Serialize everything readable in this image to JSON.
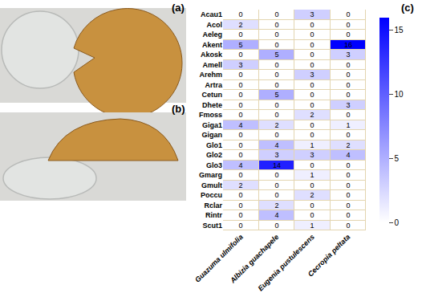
{
  "chart_data": {
    "type": "heatmap",
    "categories": [
      "Guazuma ulmifolia",
      "Albizia guachapele",
      "Eugenia pustulescens",
      "Cecropia peltata"
    ],
    "rows": [
      "Acau1",
      "Acol",
      "Aeleg",
      "Akent",
      "Akosk",
      "Amell",
      "Arehm",
      "Artra",
      "Cetun",
      "Dhete",
      "Fmoss",
      "Giga1",
      "Gigan",
      "Glo1",
      "Glo2",
      "Glo3",
      "Gmarg",
      "Gmult",
      "Poccu",
      "Rclar",
      "Rintr",
      "Scut1"
    ],
    "cells": [
      [
        0,
        0,
        3,
        0
      ],
      [
        2,
        0,
        0,
        0
      ],
      [
        0,
        0,
        0,
        0
      ],
      [
        5,
        0,
        0,
        16
      ],
      [
        0,
        5,
        0,
        3
      ],
      [
        3,
        0,
        0,
        0
      ],
      [
        0,
        0,
        3,
        0
      ],
      [
        0,
        0,
        0,
        0
      ],
      [
        0,
        5,
        0,
        0
      ],
      [
        0,
        0,
        0,
        3
      ],
      [
        0,
        0,
        2,
        0
      ],
      [
        4,
        2,
        0,
        1
      ],
      [
        0,
        0,
        0,
        0
      ],
      [
        0,
        4,
        1,
        2
      ],
      [
        0,
        3,
        3,
        4
      ],
      [
        4,
        14,
        0,
        0
      ],
      [
        0,
        0,
        1,
        0
      ],
      [
        2,
        0,
        0,
        0
      ],
      [
        0,
        0,
        2,
        0
      ],
      [
        0,
        2,
        0,
        0
      ],
      [
        0,
        4,
        0,
        0
      ],
      [
        0,
        0,
        1,
        0
      ]
    ],
    "colorbar": {
      "range": [
        0,
        16
      ],
      "ticks": [
        0,
        5,
        10,
        15
      ]
    },
    "colors": [
      "#ffffff",
      "#0000ff"
    ],
    "data_labels": true
  },
  "panel_labels": [
    "(a)",
    "(b)",
    "(c)"
  ]
}
